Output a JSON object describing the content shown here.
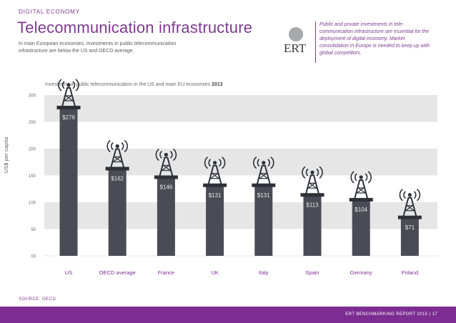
{
  "header": {
    "section": "DIGITAL ECONOMY",
    "title": "Telecommunication infrastructure",
    "intro": "In main European economies, investments in public telecommunication infrastructure are below the US and OECD average."
  },
  "sidebar_quote": {
    "logo_text": "ERT",
    "text": "Public and private investments in tele-communication infrastructure are essential for the deployment of digital economy. Market consolidation in Europe is needed to keep up with global competitors."
  },
  "chart_data": {
    "type": "bar",
    "title_prefix": "Investment in public telecommunication in the US and main EU economies",
    "title_year": "2013",
    "ylabel": "US$ per capita",
    "ylim": [
      0,
      300
    ],
    "yticks": [
      "00",
      "50",
      "100",
      "150",
      "200",
      "250",
      "300"
    ],
    "categories": [
      "US",
      "OECD average",
      "France",
      "UK",
      "Italy",
      "Spain",
      "Germany",
      "Poland"
    ],
    "values": [
      276,
      162,
      146,
      131,
      131,
      113,
      104,
      71
    ],
    "value_labels": [
      "$276",
      "$162",
      "$146",
      "$131",
      "$131",
      "$113",
      "$104",
      "$71"
    ],
    "grid": "alternating bands",
    "colors": {
      "bar": "#4a4c55",
      "band": "#e6e6e7",
      "accent": "#7d2d91"
    }
  },
  "source": "SOURCE: OECD",
  "footer": {
    "text": "ERT BENCHMARKING REPORT 2015  |  17"
  }
}
